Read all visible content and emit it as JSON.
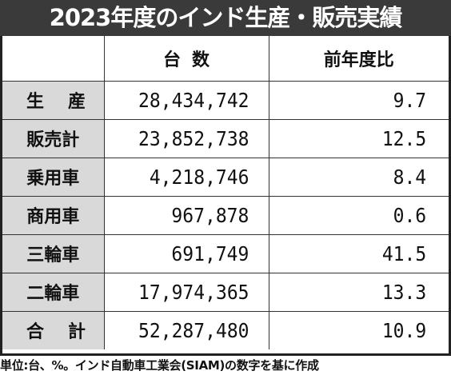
{
  "title": "2023年度のインド生産・販売実績",
  "table": {
    "header": {
      "corner": "",
      "count_label": "台数",
      "ratio_label": "前年度比"
    },
    "rows": [
      {
        "label": "生産",
        "count": "28,434,742",
        "ratio": "9.7"
      },
      {
        "label": "販売計",
        "count": "23,852,738",
        "ratio": "12.5"
      },
      {
        "label": "乗用車",
        "count": "4,218,746",
        "ratio": "8.4"
      },
      {
        "label": "商用車",
        "count": "967,878",
        "ratio": "0.6"
      },
      {
        "label": "三輪車",
        "count": "691,749",
        "ratio": "41.5"
      },
      {
        "label": "二輪車",
        "count": "17,974,365",
        "ratio": "13.3"
      },
      {
        "label": "合計",
        "count": "52,287,480",
        "ratio": "10.9"
      }
    ]
  },
  "footnote": "単位:台、%。インド自動車工業会(SIAM)の数字を基に作成"
}
